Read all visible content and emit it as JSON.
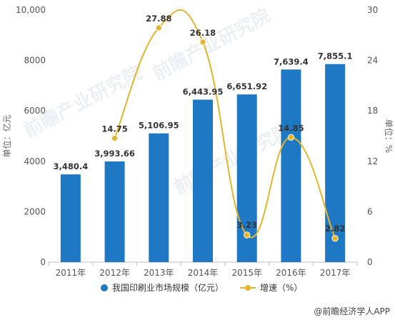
{
  "chart_data": {
    "type": "bar",
    "categories": [
      "2011年",
      "2012年",
      "2013年",
      "2014年",
      "2015年",
      "2016年",
      "2017年"
    ],
    "series": [
      {
        "name": "我国印刷业市场规模（亿元）",
        "type": "bar",
        "axis": "left",
        "color": "#1f78c4",
        "values": [
          3480.4,
          3993.66,
          5106.95,
          6443.95,
          6651.92,
          7639.4,
          7855.1
        ],
        "labels": [
          "3,480.4",
          "3,993.66",
          "5,106.95",
          "6,443.95",
          "6,651.92",
          "7,639.4",
          "7,855.1"
        ]
      },
      {
        "name": "增速（%）",
        "type": "line",
        "axis": "right",
        "color": "#e5b52b",
        "values": [
          null,
          14.75,
          27.88,
          26.18,
          3.23,
          14.85,
          2.82
        ],
        "labels": [
          "",
          "14.75",
          "27.88",
          "26.18",
          "3.23",
          "14.85",
          "2.82"
        ]
      }
    ],
    "ylabel": "单位：亿元",
    "y2label": "单位：%",
    "ylim": [
      0,
      10000
    ],
    "y2lim": [
      0,
      30
    ],
    "yticks": [
      "0",
      "2000",
      "4000",
      "6000",
      "8000",
      "10,000"
    ],
    "y2ticks": [
      "0",
      "6",
      "12",
      "18",
      "24",
      "30"
    ],
    "legend_position": "bottom",
    "grid": false
  },
  "watermark": "前瞻产业研究院",
  "source": "@前瞻经济学人APP"
}
